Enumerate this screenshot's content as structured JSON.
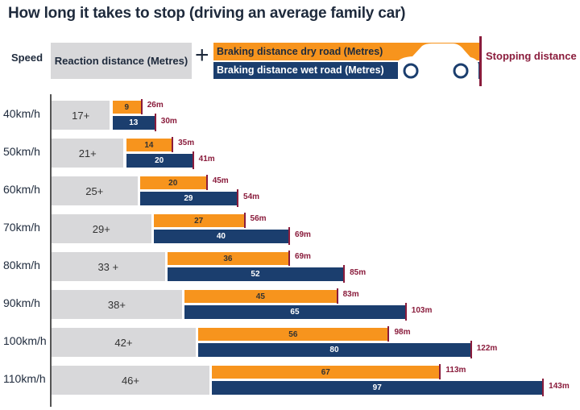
{
  "chart_data": {
    "type": "bar",
    "title": "How long it takes to stop (driving an average family car)",
    "legend": {
      "speed": "Speed",
      "reaction": "Reaction distance (Metres)",
      "plus": "+",
      "dry": "Braking distance dry road (Metres)",
      "wet": "Braking distance wet road (Metres)",
      "stopping": "Stopping distance"
    },
    "categories": [
      "40km/h",
      "50km/h",
      "60km/h",
      "70km/h",
      "80km/h",
      "90km/h",
      "100km/h",
      "110km/h"
    ],
    "reaction_labels": [
      "17+",
      "21+",
      "25+",
      "29+",
      "33 +",
      "38+",
      "42+",
      "46+"
    ],
    "reaction": [
      17,
      21,
      25,
      29,
      33,
      38,
      42,
      46
    ],
    "dry": [
      9,
      14,
      20,
      27,
      36,
      45,
      56,
      67
    ],
    "wet": [
      13,
      20,
      29,
      40,
      52,
      65,
      80,
      97
    ],
    "total_dry_labels": [
      "26m",
      "35m",
      "45m",
      "56m",
      "69m",
      "83m",
      "98m",
      "113m"
    ],
    "total_wet_labels": [
      "30m",
      "41m",
      "54m",
      "69m",
      "85m",
      "103m",
      "122m",
      "143m"
    ],
    "colors": {
      "reaction": "#d8d8da",
      "dry": "#f7941d",
      "wet": "#1b3e6e",
      "stopping": "#8a1c3c"
    }
  }
}
